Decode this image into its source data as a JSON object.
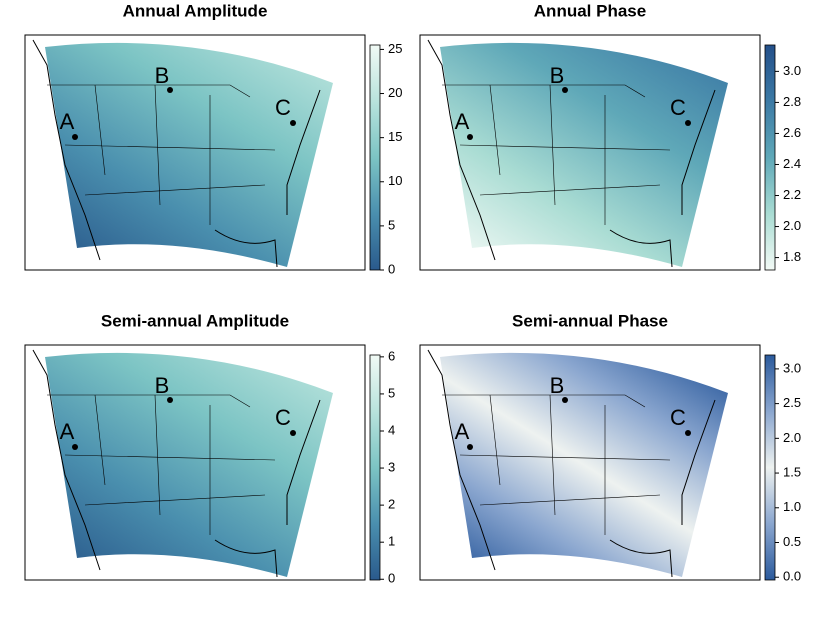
{
  "panels": [
    {
      "title": "Annual Amplitude",
      "colorbar": {
        "lim": [
          0,
          25.5
        ],
        "ticks": [
          0,
          5,
          10,
          15,
          20,
          25
        ],
        "colors": [
          "#2a5a8c",
          "#4a8fae",
          "#7cc4c4",
          "#b8e3dc",
          "#f1faf5"
        ]
      },
      "points": [
        "A",
        "B",
        "C"
      ]
    },
    {
      "title": "Annual Phase",
      "colorbar": {
        "lim": [
          1.72,
          3.17
        ],
        "ticks": [
          {
            "value": 1.8,
            "label": "1.8"
          },
          {
            "value": 2,
            "label": "2.0"
          },
          {
            "value": 2.2,
            "label": "2.2"
          },
          {
            "value": 2.4,
            "label": "2.4"
          },
          {
            "value": 2.6,
            "label": "2.6"
          },
          {
            "value": 2.8,
            "label": "2.8"
          },
          {
            "value": 3,
            "label": "3.0"
          }
        ],
        "colors": [
          "#f3faf6",
          "#a9dcd3",
          "#5fa8b8",
          "#3c7aa5",
          "#24508a"
        ]
      },
      "points": [
        "A",
        "B",
        "C"
      ]
    },
    {
      "title": "Semi-annual Amplitude",
      "colorbar": {
        "lim": [
          -0.02,
          6.05
        ],
        "ticks": [
          0,
          1,
          2,
          3,
          4,
          5,
          6
        ],
        "colors": [
          "#2a5a8c",
          "#4a8fae",
          "#7cc4c4",
          "#b8e3dc",
          "#f1faf5"
        ]
      },
      "points": [
        "A",
        "B",
        "C"
      ]
    },
    {
      "title": "Semi-annual Phase",
      "colorbar": {
        "lim": [
          -0.04,
          3.2
        ],
        "ticks": [
          {
            "value": 0,
            "label": "0.0"
          },
          {
            "value": 0.5,
            "label": "0.5"
          },
          {
            "value": 1,
            "label": "1.0"
          },
          {
            "value": 1.5,
            "label": "1.5"
          },
          {
            "value": 2,
            "label": "2.0"
          },
          {
            "value": 2.5,
            "label": "2.5"
          },
          {
            "value": 3,
            "label": "3.0"
          }
        ],
        "colors": [
          "#2b5a9c",
          "#8aa6cf",
          "#eef2f0",
          "#8aa6cf",
          "#2b5a9c"
        ]
      },
      "points": [
        "A",
        "B",
        "C"
      ]
    }
  ]
}
